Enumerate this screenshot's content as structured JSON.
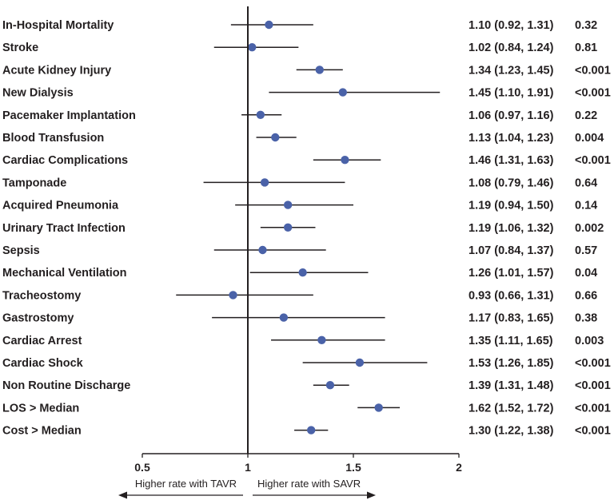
{
  "chart_data": {
    "type": "forest",
    "xlim": [
      0.5,
      2
    ],
    "reference_line": 1,
    "x_ticks": [
      {
        "value": 0.5,
        "label": "0.5"
      },
      {
        "value": 1,
        "label": "1"
      },
      {
        "value": 1.5,
        "label": "1.5"
      },
      {
        "value": 2,
        "label": "2"
      }
    ],
    "direction_labels": {
      "left": "Higher rate with TAVR",
      "right": "Higher rate with SAVR"
    },
    "colors": {
      "marker": "#4a62a8",
      "line": "#231f20",
      "text": "#231f20"
    },
    "rows": [
      {
        "label": "In-Hospital Mortality",
        "or": 1.1,
        "lo": 0.92,
        "hi": 1.31,
        "ci_text": "1.10 (0.92, 1.31)",
        "p": "0.32"
      },
      {
        "label": "Stroke",
        "or": 1.02,
        "lo": 0.84,
        "hi": 1.24,
        "ci_text": "1.02 (0.84, 1.24)",
        "p": "0.81"
      },
      {
        "label": "Acute Kidney Injury",
        "or": 1.34,
        "lo": 1.23,
        "hi": 1.45,
        "ci_text": "1.34 (1.23, 1.45)",
        "p": "<0.001"
      },
      {
        "label": "New Dialysis",
        "or": 1.45,
        "lo": 1.1,
        "hi": 1.91,
        "ci_text": "1.45 (1.10, 1.91)",
        "p": "<0.001"
      },
      {
        "label": "Pacemaker Implantation",
        "or": 1.06,
        "lo": 0.97,
        "hi": 1.16,
        "ci_text": "1.06 (0.97, 1.16)",
        "p": "0.22"
      },
      {
        "label": "Blood Transfusion",
        "or": 1.13,
        "lo": 1.04,
        "hi": 1.23,
        "ci_text": "1.13 (1.04, 1.23)",
        "p": "0.004"
      },
      {
        "label": "Cardiac Complications",
        "or": 1.46,
        "lo": 1.31,
        "hi": 1.63,
        "ci_text": "1.46 (1.31, 1.63)",
        "p": "<0.001"
      },
      {
        "label": "Tamponade",
        "or": 1.08,
        "lo": 0.79,
        "hi": 1.46,
        "ci_text": "1.08 (0.79, 1.46)",
        "p": "0.64"
      },
      {
        "label": "Acquired Pneumonia",
        "or": 1.19,
        "lo": 0.94,
        "hi": 1.5,
        "ci_text": "1.19 (0.94, 1.50)",
        "p": "0.14"
      },
      {
        "label": "Urinary Tract Infection",
        "or": 1.19,
        "lo": 1.06,
        "hi": 1.32,
        "ci_text": "1.19 (1.06, 1.32)",
        "p": "0.002"
      },
      {
        "label": "Sepsis",
        "or": 1.07,
        "lo": 0.84,
        "hi": 1.37,
        "ci_text": "1.07 (0.84, 1.37)",
        "p": "0.57"
      },
      {
        "label": "Mechanical Ventilation",
        "or": 1.26,
        "lo": 1.01,
        "hi": 1.57,
        "ci_text": "1.26 (1.01, 1.57)",
        "p": "0.04"
      },
      {
        "label": "Tracheostomy",
        "or": 0.93,
        "lo": 0.66,
        "hi": 1.31,
        "ci_text": "0.93 (0.66, 1.31)",
        "p": "0.66"
      },
      {
        "label": "Gastrostomy",
        "or": 1.17,
        "lo": 0.83,
        "hi": 1.65,
        "ci_text": "1.17 (0.83, 1.65)",
        "p": "0.38"
      },
      {
        "label": "Cardiac Arrest",
        "or": 1.35,
        "lo": 1.11,
        "hi": 1.65,
        "ci_text": "1.35 (1.11, 1.65)",
        "p": "0.003"
      },
      {
        "label": "Cardiac Shock",
        "or": 1.53,
        "lo": 1.26,
        "hi": 1.85,
        "ci_text": "1.53 (1.26, 1.85)",
        "p": "<0.001"
      },
      {
        "label": "Non Routine Discharge",
        "or": 1.39,
        "lo": 1.31,
        "hi": 1.48,
        "ci_text": "1.39 (1.31, 1.48)",
        "p": "<0.001"
      },
      {
        "label": "LOS > Median",
        "or": 1.62,
        "lo": 1.52,
        "hi": 1.72,
        "ci_text": "1.62 (1.52, 1.72)",
        "p": "<0.001"
      },
      {
        "label": "Cost > Median",
        "or": 1.3,
        "lo": 1.22,
        "hi": 1.38,
        "ci_text": "1.30 (1.22, 1.38)",
        "p": "<0.001"
      }
    ]
  }
}
